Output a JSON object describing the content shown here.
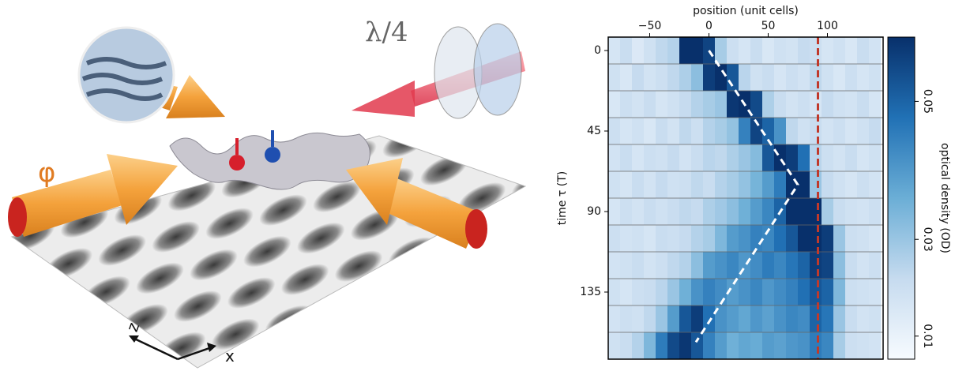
{
  "illustration": {
    "labels": {
      "wave_plate": "λ/4",
      "phase": "φ",
      "axis_z": "z",
      "axis_x": "x"
    }
  },
  "chart_data": {
    "type": "heatmap",
    "x_label": "position (unit cells)",
    "y_label": "time τ (T)",
    "colorbar_label": "optical density (OD)",
    "xlim": [
      -85,
      147
    ],
    "ylim": [
      -7.5,
      172.5
    ],
    "y_inverted": true,
    "x_axis_position": "top",
    "xticks": [
      {
        "value": -50,
        "label": "−50"
      },
      0,
      50,
      100
    ],
    "yticks": [
      0,
      45,
      90,
      135
    ],
    "x_bins": [
      -85,
      -75,
      -65,
      -55,
      -45,
      -35,
      -25,
      -15,
      -5,
      5,
      15,
      25,
      35,
      45,
      55,
      65,
      75,
      85,
      95,
      105,
      115,
      125,
      135,
      145
    ],
    "y": [
      0,
      15,
      30,
      45,
      60,
      75,
      90,
      105,
      120,
      135,
      150,
      165
    ],
    "z": [
      [
        0.018,
        0.022,
        0.016,
        0.02,
        0.024,
        0.026,
        0.058,
        0.06,
        0.055,
        0.028,
        0.021,
        0.018,
        0.022,
        0.017,
        0.02,
        0.019,
        0.023,
        0.021,
        0.018,
        0.02,
        0.017,
        0.022,
        0.019
      ],
      [
        0.02,
        0.017,
        0.023,
        0.019,
        0.021,
        0.024,
        0.027,
        0.032,
        0.056,
        0.06,
        0.052,
        0.025,
        0.02,
        0.022,
        0.018,
        0.021,
        0.019,
        0.024,
        0.02,
        0.017,
        0.021,
        0.018,
        0.02
      ],
      [
        0.017,
        0.021,
        0.019,
        0.022,
        0.018,
        0.02,
        0.023,
        0.026,
        0.028,
        0.03,
        0.057,
        0.06,
        0.054,
        0.027,
        0.022,
        0.019,
        0.021,
        0.018,
        0.023,
        0.02,
        0.019,
        0.022,
        0.018
      ],
      [
        0.021,
        0.018,
        0.02,
        0.017,
        0.022,
        0.019,
        0.024,
        0.021,
        0.026,
        0.028,
        0.031,
        0.045,
        0.055,
        0.05,
        0.042,
        0.024,
        0.02,
        0.022,
        0.019,
        0.021,
        0.018,
        0.02,
        0.023
      ],
      [
        0.019,
        0.022,
        0.018,
        0.021,
        0.02,
        0.023,
        0.019,
        0.022,
        0.025,
        0.024,
        0.027,
        0.03,
        0.033,
        0.052,
        0.058,
        0.056,
        0.048,
        0.025,
        0.021,
        0.019,
        0.022,
        0.018,
        0.02
      ],
      [
        0.02,
        0.018,
        0.022,
        0.019,
        0.023,
        0.02,
        0.021,
        0.024,
        0.022,
        0.026,
        0.028,
        0.031,
        0.035,
        0.04,
        0.046,
        0.058,
        0.06,
        0.03,
        0.023,
        0.02,
        0.018,
        0.021,
        0.019
      ],
      [
        0.018,
        0.021,
        0.019,
        0.022,
        0.02,
        0.022,
        0.024,
        0.023,
        0.027,
        0.029,
        0.032,
        0.036,
        0.04,
        0.044,
        0.05,
        0.06,
        0.061,
        0.058,
        0.028,
        0.022,
        0.02,
        0.019,
        0.021
      ],
      [
        0.021,
        0.019,
        0.02,
        0.018,
        0.022,
        0.021,
        0.023,
        0.026,
        0.028,
        0.034,
        0.04,
        0.042,
        0.045,
        0.044,
        0.048,
        0.052,
        0.058,
        0.06,
        0.056,
        0.03,
        0.021,
        0.02,
        0.018
      ],
      [
        0.019,
        0.02,
        0.022,
        0.019,
        0.021,
        0.024,
        0.026,
        0.032,
        0.04,
        0.042,
        0.044,
        0.041,
        0.043,
        0.046,
        0.044,
        0.047,
        0.05,
        0.056,
        0.055,
        0.032,
        0.022,
        0.019,
        0.021
      ],
      [
        0.02,
        0.018,
        0.021,
        0.022,
        0.025,
        0.03,
        0.036,
        0.042,
        0.045,
        0.043,
        0.04,
        0.042,
        0.044,
        0.041,
        0.043,
        0.045,
        0.048,
        0.052,
        0.05,
        0.034,
        0.021,
        0.02,
        0.019
      ],
      [
        0.019,
        0.021,
        0.02,
        0.024,
        0.03,
        0.04,
        0.052,
        0.056,
        0.048,
        0.042,
        0.04,
        0.038,
        0.041,
        0.039,
        0.042,
        0.044,
        0.043,
        0.05,
        0.047,
        0.03,
        0.022,
        0.019,
        0.02
      ],
      [
        0.02,
        0.022,
        0.026,
        0.034,
        0.046,
        0.054,
        0.057,
        0.052,
        0.045,
        0.04,
        0.036,
        0.038,
        0.037,
        0.04,
        0.039,
        0.041,
        0.042,
        0.046,
        0.044,
        0.028,
        0.021,
        0.02,
        0.019
      ]
    ],
    "colormap": [
      "#f7fbff",
      "#c6dbef",
      "#6baed6",
      "#2171b5",
      "#08306b"
    ],
    "clim": [
      0,
      0.058
    ],
    "color_norm": "power",
    "color_power": 1.5,
    "colorbar_ticks": [
      0.01,
      0.03,
      0.05
    ],
    "series": [
      {
        "color": "#ffffff",
        "style": "dashed",
        "x": [
          0,
          75,
          -11
        ],
        "y": [
          0,
          75,
          163
        ]
      }
    ],
    "vline": {
      "x": 92,
      "color": "#c0392b",
      "style": "dashed"
    }
  }
}
